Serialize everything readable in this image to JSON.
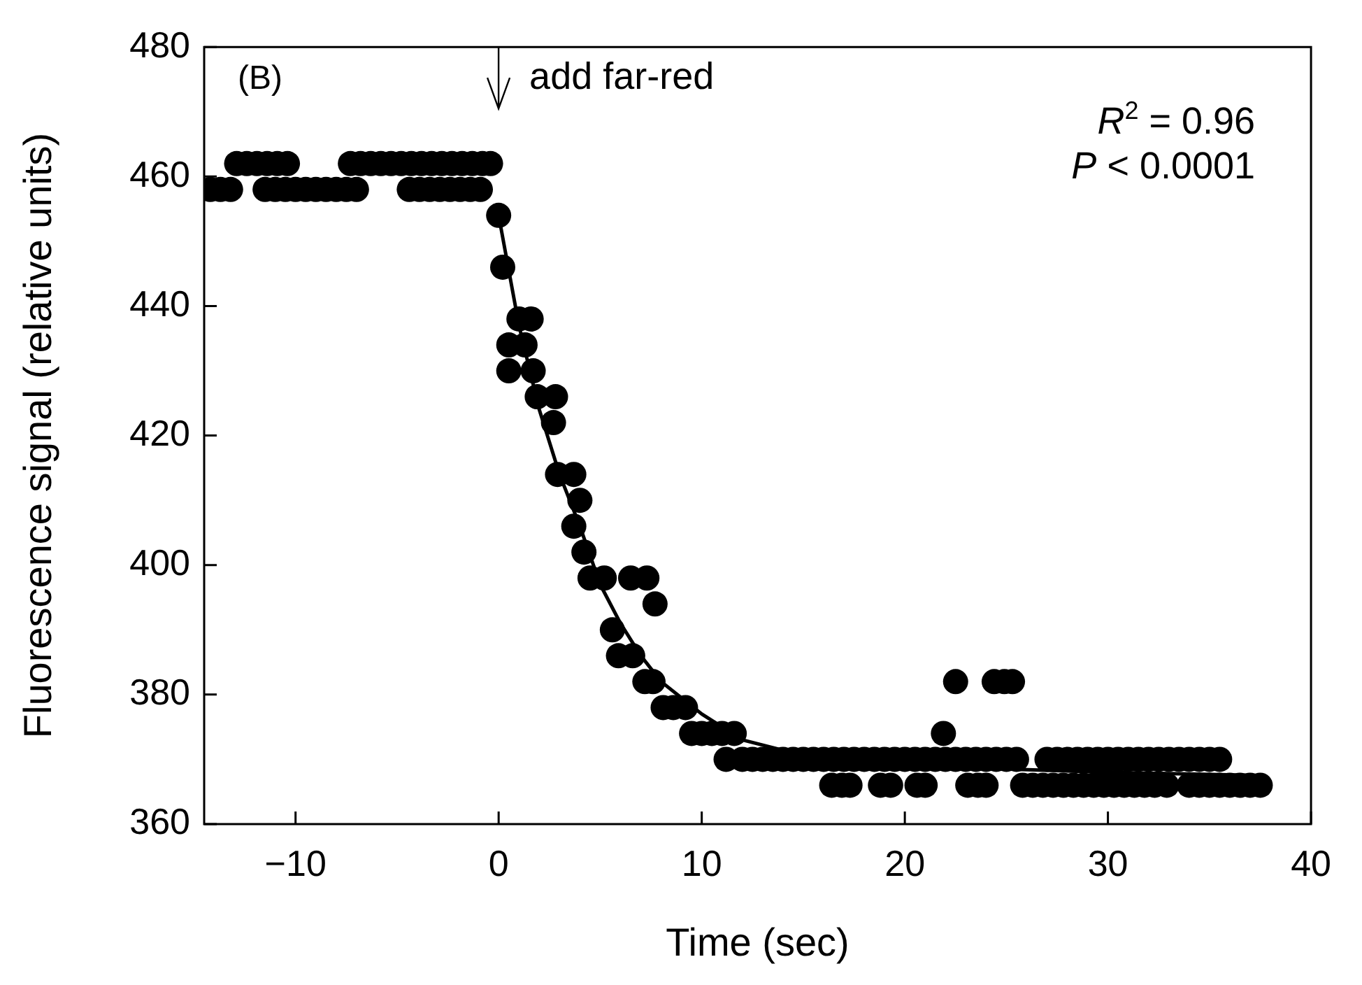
{
  "chart_data": {
    "type": "scatter",
    "xlabel": "Time (sec)",
    "ylabel": "Fluorescence signal (relative units)",
    "xlim": [
      -14.5,
      40
    ],
    "xticks": [
      -10,
      0,
      10,
      20,
      30,
      40
    ],
    "ylim": [
      360,
      480
    ],
    "yticks": [
      360,
      380,
      400,
      420,
      440,
      460,
      480
    ],
    "grid": false,
    "legend": false,
    "annotations": [
      "(B)",
      "add far-red",
      "R$^{2}$ = 0.96",
      "P < 0.0001"
    ],
    "series": [
      {
        "type": "scatter",
        "color": "#000000",
        "marker": "circle",
        "x": [
          -12.9,
          -12.4,
          -11.9,
          -11.4,
          -10.9,
          -10.4,
          -7.3,
          -6.8,
          -6.3,
          -5.8,
          -5.3,
          -4.8,
          -4.3,
          -3.8,
          -3.3,
          -2.8,
          -2.3,
          -1.8,
          -1.3,
          -0.8,
          -0.4,
          -14.2,
          -13.7,
          -13.2,
          -11.5,
          -11.0,
          -10.5,
          -10.0,
          -9.5,
          -9.0,
          -8.5,
          -8.0,
          -7.5,
          -7.0,
          -4.4,
          -3.9,
          -3.4,
          -2.9,
          -2.4,
          -1.9,
          -1.4,
          -0.9,
          0,
          0.2,
          0.5,
          0.5,
          1.0,
          1.3,
          1.6,
          1.7,
          1.9,
          2.7,
          2.8,
          2.9,
          3.7,
          3.7,
          4.0,
          4.2,
          4.5,
          5.2,
          6.5,
          7.3,
          7.7,
          5.6,
          5.9,
          6.6,
          7.2,
          7.6,
          8.1,
          8.6,
          9.2,
          9.5,
          10,
          10.5,
          11,
          11.6,
          11.2,
          12,
          12.5,
          13,
          13.5,
          14,
          14.5,
          15,
          15.5,
          16,
          16.5,
          17,
          17.5,
          18,
          18.5,
          19,
          19.5,
          20,
          20.5,
          21,
          21.5,
          22,
          22.5,
          23,
          23.5,
          24,
          24.5,
          25,
          25.5,
          27,
          27.5,
          28,
          28.5,
          29,
          29.5,
          30,
          30.5,
          31,
          31.5,
          32,
          32.5,
          33,
          33.5,
          34,
          34.5,
          35,
          35.5,
          16.4,
          16.9,
          17.3,
          18.8,
          19.3,
          20.6,
          21.0,
          23.1,
          23.6,
          24.0,
          25.8,
          26.3,
          26.8,
          27.3,
          27.8,
          28.3,
          28.8,
          29.3,
          29.8,
          30.3,
          30.8,
          31.3,
          31.8,
          32.3,
          32.9,
          34.0,
          34.5,
          35.0,
          35.5,
          36.0,
          36.5,
          37.0,
          37.5,
          21.9,
          22.5,
          24.4,
          24.9,
          25.3
        ],
        "values": [
          462,
          462,
          462,
          462,
          462,
          462,
          462,
          462,
          462,
          462,
          462,
          462,
          462,
          462,
          462,
          462,
          462,
          462,
          462,
          462,
          462,
          458,
          458,
          458,
          458,
          458,
          458,
          458,
          458,
          458,
          458,
          458,
          458,
          458,
          458,
          458,
          458,
          458,
          458,
          458,
          458,
          458,
          454,
          446,
          434,
          430,
          438,
          434,
          438,
          430,
          426,
          422,
          426,
          414,
          414,
          406,
          410,
          402,
          398,
          398,
          398,
          398,
          394,
          390,
          386,
          386,
          382,
          382,
          378,
          378,
          378,
          374,
          374,
          374,
          374,
          374,
          370,
          370,
          370,
          370,
          370,
          370,
          370,
          370,
          370,
          370,
          370,
          370,
          370,
          370,
          370,
          370,
          370,
          370,
          370,
          370,
          370,
          370,
          370,
          370,
          370,
          370,
          370,
          370,
          370,
          370,
          370,
          370,
          370,
          370,
          370,
          370,
          370,
          370,
          370,
          370,
          370,
          370,
          370,
          370,
          370,
          370,
          370,
          366,
          366,
          366,
          366,
          366,
          366,
          366,
          366,
          366,
          366,
          366,
          366,
          366,
          366,
          366,
          366,
          366,
          366,
          366,
          366,
          366,
          366,
          366,
          366,
          366,
          366,
          366,
          366,
          366,
          366,
          366,
          366,
          366,
          374,
          382,
          382,
          382,
          382
        ]
      },
      {
        "type": "line",
        "color": "#000000",
        "marker": "none",
        "x": [
          0,
          1,
          2,
          3,
          4,
          5,
          6,
          7,
          8,
          10,
          12,
          14.5,
          20,
          30,
          37.5
        ],
        "values": [
          454,
          437,
          424,
          414,
          406,
          397,
          391,
          386,
          382,
          377,
          373,
          371,
          369,
          368,
          367.5
        ]
      }
    ]
  }
}
